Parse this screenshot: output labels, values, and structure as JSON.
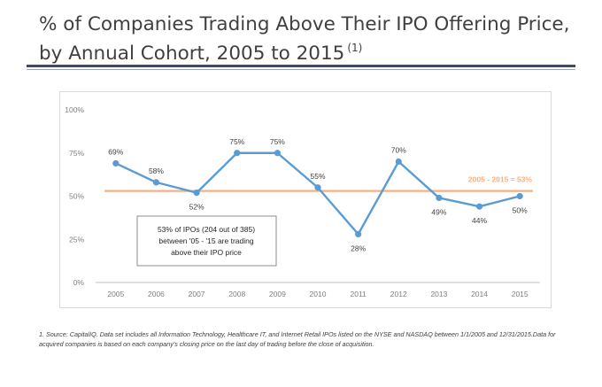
{
  "title": {
    "main": "% of Companies Trading Above Their IPO Offering Price, by Annual Cohort, 2005 to 2015",
    "superscript": "(1)"
  },
  "chart_data": {
    "type": "line",
    "categories": [
      "2005",
      "2006",
      "2007",
      "2008",
      "2009",
      "2010",
      "2011",
      "2012",
      "2013",
      "2014",
      "2015"
    ],
    "values": [
      69,
      58,
      52,
      75,
      75,
      55,
      28,
      70,
      49,
      44,
      50
    ],
    "data_labels": [
      "69%",
      "58%",
      "52%",
      "75%",
      "75%",
      "55%",
      "28%",
      "70%",
      "49%",
      "44%",
      "50%"
    ],
    "y_ticks": [
      "0%",
      "25%",
      "50%",
      "75%",
      "100%"
    ],
    "ylim": [
      0,
      100
    ],
    "grid": false,
    "series_color": "#5b9bd5",
    "reference_line": {
      "value": 53,
      "label": "2005 - 2015 = 53%",
      "color": "#f4b183"
    },
    "annotation": {
      "lines": [
        "53% of IPOs (204 out of 385)",
        "between '05 - '15 are trading",
        "above their IPO price"
      ]
    }
  },
  "footnote": "1. Source: CapitalIQ. Data set includes all Information Technology, Healthcare IT, and Internet Retail IPOs listed on the NYSE and NASDAQ between 1/1/2005 and 12/31/2015.Data for acquired companies is based on each company's closing price on the last day of trading before the close of acquisition."
}
